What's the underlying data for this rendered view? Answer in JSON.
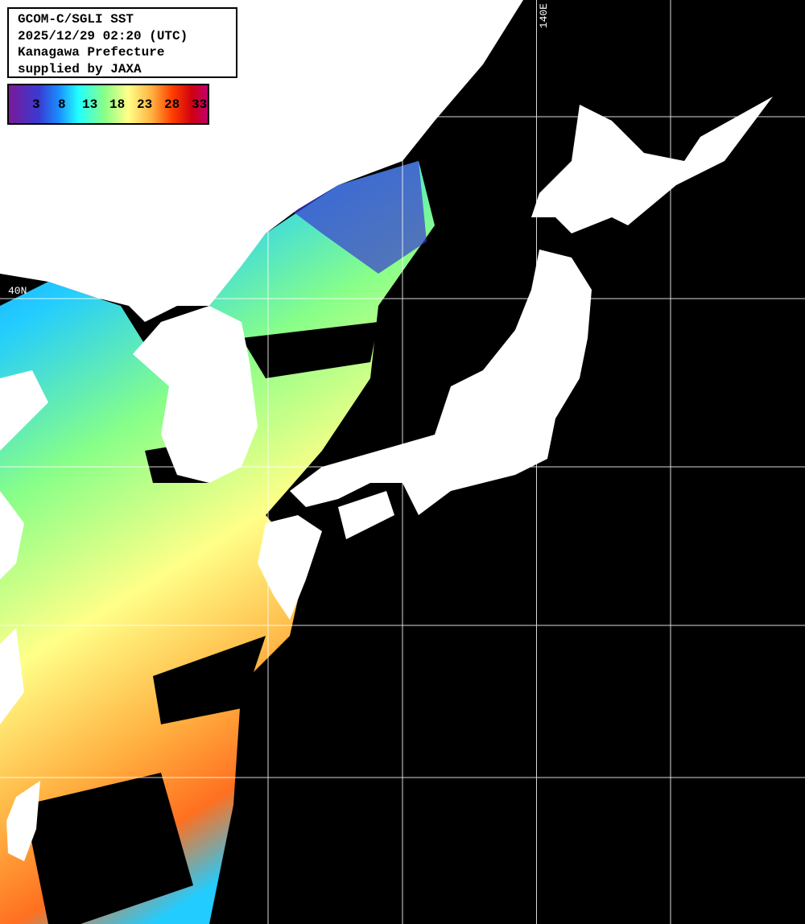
{
  "info": {
    "lines": [
      "GCOM-C/SGLI SST",
      "2025/12/29 02:20 (UTC)",
      "Kanagawa Prefecture",
      "supplied by JAXA"
    ]
  },
  "colorbar": {
    "unit_values": [
      "3",
      "8",
      "13",
      "18",
      "23",
      "28",
      "33"
    ],
    "colors": [
      "#7a1a9a",
      "#3a3ad0",
      "#1a8cff",
      "#22ffff",
      "#88ff88",
      "#ffff88",
      "#ffb040",
      "#ff4000",
      "#d00010",
      "#c0006a"
    ]
  },
  "grid": {
    "lon_label": "140E",
    "lat_label": "40N"
  },
  "colors": {
    "land": "#ffffff",
    "no_data": "#000000",
    "grid": "#ffffff"
  }
}
